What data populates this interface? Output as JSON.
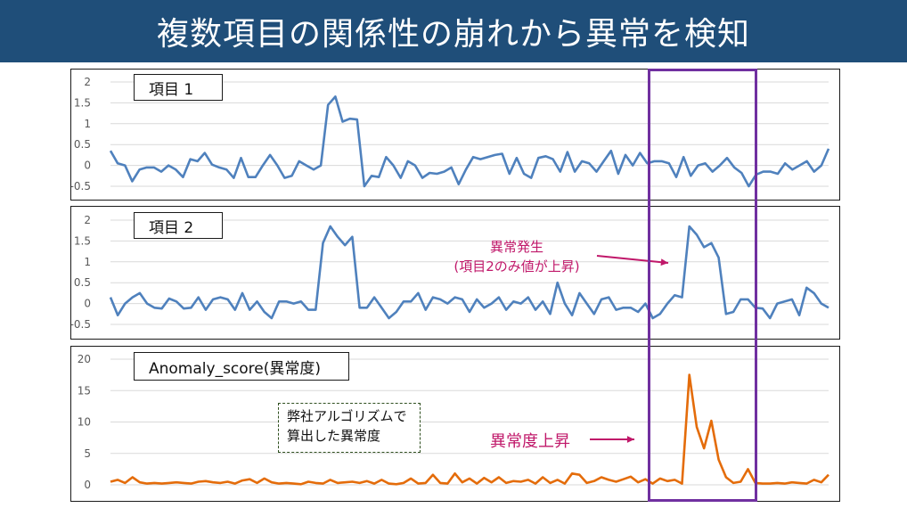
{
  "title": "複数項目の関係性の崩れから異常を検知",
  "colors": {
    "title_bg": "#1f4e79",
    "line_blue": "#4f81bd",
    "line_orange": "#e46c0a",
    "annotation": "#c0186a",
    "highlight": "#7030a0"
  },
  "chart_data": [
    {
      "type": "line",
      "label": "項目 1",
      "ylim": [
        -0.5,
        2
      ],
      "yticks": [
        "2",
        "1.5",
        "1",
        "0.5",
        "0",
        "-0.5"
      ],
      "grid": true,
      "series": [
        {
          "values": [
            0.35,
            0.05,
            0,
            -0.38,
            -0.1,
            -0.05,
            -0.05,
            -0.15,
            0,
            -0.1,
            -0.28,
            0.15,
            0.1,
            0.3,
            0.02,
            -0.05,
            -0.1,
            -0.3,
            0.18,
            -0.28,
            -0.28,
            0,
            0.25,
            0,
            -0.3,
            -0.25,
            0.1,
            0,
            -0.1,
            0,
            1.45,
            1.65,
            1.05,
            1.12,
            1.1,
            -0.5,
            -0.25,
            -0.28,
            0.2,
            0,
            -0.3,
            0.1,
            0,
            -0.3,
            -0.18,
            -0.2,
            -0.15,
            -0.05,
            -0.45,
            -0.1,
            0.2,
            0.15,
            0.2,
            0.25,
            0.28,
            -0.2,
            0.18,
            -0.2,
            -0.3,
            0.18,
            0.22,
            0.15,
            -0.15,
            0.32,
            -0.15,
            0.1,
            0.05,
            -0.15,
            0.1,
            0.35,
            -0.2,
            0.25,
            0,
            0.3,
            0.05,
            0.1,
            0.1,
            0.05,
            -0.28,
            0.2,
            -0.25,
            0,
            0.05,
            -0.15,
            0,
            0.18,
            -0.05,
            -0.18,
            -0.5,
            -0.22,
            -0.15,
            -0.15,
            -0.2,
            0.05,
            -0.1,
            0,
            0.1,
            -0.15,
            0,
            0.4
          ]
        }
      ]
    },
    {
      "type": "line",
      "label": "項目 2",
      "ylim": [
        -0.5,
        2
      ],
      "yticks": [
        "2",
        "1.5",
        "1",
        "0.5",
        "0",
        "-0.5"
      ],
      "grid": true,
      "series": [
        {
          "values": [
            0.15,
            -0.28,
            0,
            0.15,
            0.25,
            0,
            -0.1,
            -0.12,
            0.12,
            0.05,
            -0.12,
            -0.1,
            0.15,
            -0.15,
            0.1,
            0.15,
            0.1,
            -0.15,
            0.25,
            -0.15,
            0.05,
            -0.2,
            -0.35,
            0.05,
            0.05,
            0,
            0.05,
            -0.15,
            -0.15,
            1.45,
            1.85,
            1.6,
            1.4,
            1.6,
            -0.1,
            -0.1,
            0.15,
            -0.1,
            -0.35,
            -0.2,
            0.05,
            0.05,
            0.25,
            -0.15,
            0.15,
            0.1,
            0,
            0.15,
            0.1,
            -0.2,
            0.1,
            -0.1,
            0,
            0.15,
            -0.15,
            0.05,
            0,
            0.15,
            -0.15,
            0.05,
            -0.25,
            0.5,
            0,
            -0.28,
            0.25,
            0,
            -0.25,
            0.1,
            0.15,
            -0.15,
            -0.1,
            -0.1,
            -0.2,
            0,
            -0.35,
            -0.25,
            0,
            0.2,
            0.15,
            1.85,
            1.65,
            1.35,
            1.45,
            1.1,
            -0.25,
            -0.2,
            0.1,
            0.1,
            -0.1,
            -0.12,
            -0.35,
            0,
            0.05,
            0.1,
            -0.28,
            0.38,
            0.25,
            0,
            -0.1
          ]
        }
      ],
      "annotation": {
        "line1": "異常発生",
        "line2": "(項目2のみ値が上昇)"
      }
    },
    {
      "type": "line",
      "label": "Anomaly_score(異常度)",
      "ylim": [
        0,
        20
      ],
      "yticks": [
        "20",
        "15",
        "10",
        "5",
        "0"
      ],
      "grid": true,
      "series": [
        {
          "values": [
            0.5,
            0.8,
            0.3,
            1.2,
            0.4,
            0.2,
            0.3,
            0.2,
            0.3,
            0.4,
            0.3,
            0.2,
            0.5,
            0.6,
            0.4,
            0.3,
            0.5,
            0.2,
            0.7,
            0.9,
            0.3,
            1.0,
            0.4,
            0.2,
            0.3,
            0.2,
            0.1,
            0.5,
            0.3,
            0.2,
            0.8,
            0.3,
            0.4,
            0.5,
            0.3,
            0.6,
            0.2,
            0.8,
            0.2,
            0.1,
            0.3,
            1.0,
            0.2,
            0.3,
            1.6,
            0.3,
            0.2,
            1.8,
            0.4,
            1.0,
            0.2,
            1.1,
            0.4,
            1.2,
            0.3,
            0.6,
            0.5,
            0.8,
            0.2,
            1.2,
            0.3,
            0.8,
            0.2,
            1.8,
            1.6,
            0.3,
            0.6,
            1.2,
            0.8,
            0.5,
            0.9,
            1.3,
            0.4,
            0.9,
            0.2,
            1.0,
            0.6,
            0.8,
            0.2,
            17.5,
            9.2,
            5.8,
            10.2,
            4.0,
            1.2,
            0.3,
            0.5,
            2.5,
            0.3,
            0.2,
            0.2,
            0.3,
            0.2,
            0.4,
            0.3,
            0.2,
            0.8,
            0.4,
            1.6
          ]
        }
      ],
      "note": {
        "line1": "弊社アルゴリズムで",
        "line2": "算出した異常度"
      },
      "annotation": {
        "line1": "異常度上昇"
      }
    }
  ]
}
